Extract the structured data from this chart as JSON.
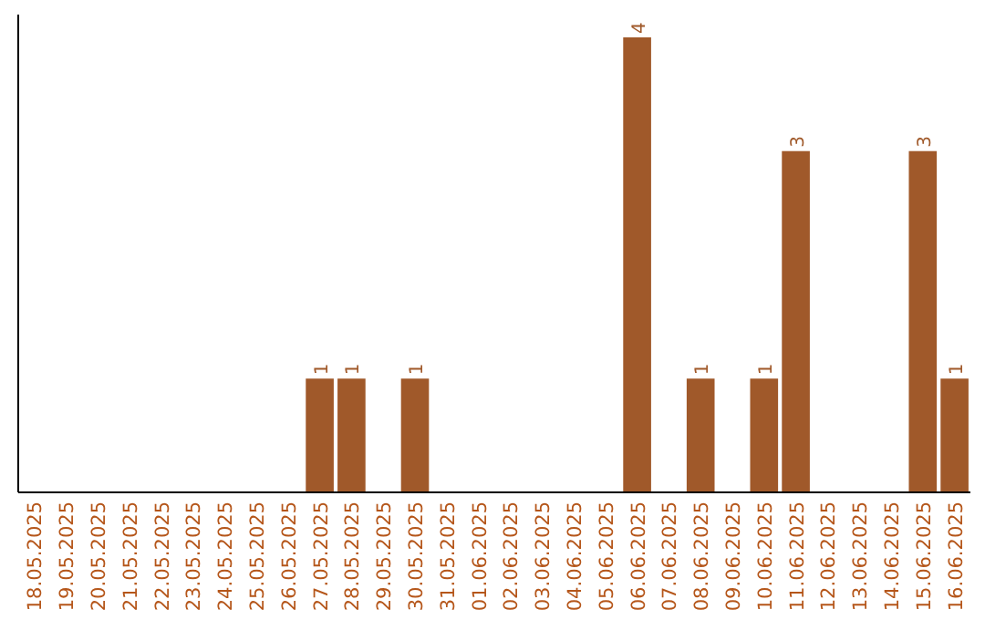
{
  "chart_data": {
    "type": "bar",
    "categories": [
      "18.05.2025",
      "19.05.2025",
      "20.05.2025",
      "21.05.2025",
      "22.05.2025",
      "23.05.2025",
      "24.05.2025",
      "25.05.2025",
      "26.05.2025",
      "27.05.2025",
      "28.05.2025",
      "29.05.2025",
      "30.05.2025",
      "31.05.2025",
      "01.06.2025",
      "02.06.2025",
      "03.06.2025",
      "04.06.2025",
      "05.06.2025",
      "06.06.2025",
      "07.06.2025",
      "08.06.2025",
      "09.06.2025",
      "10.06.2025",
      "11.06.2025",
      "12.06.2025",
      "13.06.2025",
      "14.06.2025",
      "15.06.2025",
      "16.06.2025"
    ],
    "values": [
      0,
      0,
      0,
      0,
      0,
      0,
      0,
      0,
      0,
      1,
      1,
      0,
      1,
      0,
      0,
      0,
      0,
      0,
      0,
      4,
      0,
      1,
      0,
      1,
      3,
      0,
      0,
      0,
      3,
      1
    ],
    "value_labels": [
      null,
      null,
      null,
      null,
      null,
      null,
      null,
      null,
      null,
      "1",
      "1",
      null,
      "1",
      null,
      null,
      null,
      null,
      null,
      null,
      "4",
      null,
      "1",
      null,
      "1",
      "3",
      null,
      null,
      null,
      "3",
      "1"
    ],
    "color": "#a0592a",
    "ylim": [
      0,
      4.2
    ],
    "tick_labels": "x"
  }
}
